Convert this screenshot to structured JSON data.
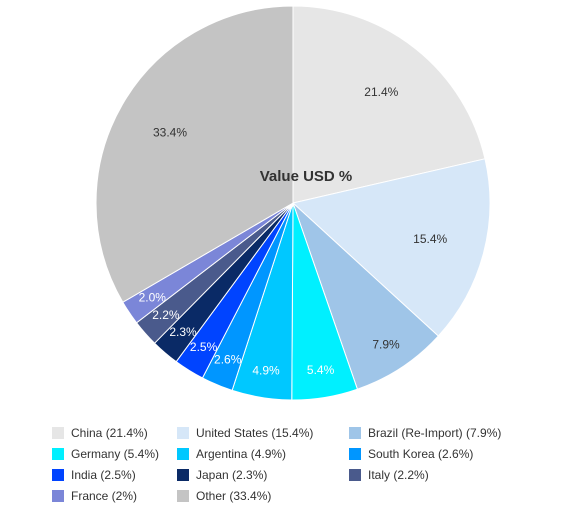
{
  "chart_data": {
    "type": "pie",
    "title": "Value USD %",
    "slices": [
      {
        "label": "China",
        "legend": "China (21.4%)",
        "value": 21.4,
        "display": "21.4%",
        "color": "#e6e6e6",
        "label_color": "#333333"
      },
      {
        "label": "United States",
        "legend": "United States (15.4%)",
        "value": 15.4,
        "display": "15.4%",
        "color": "#d6e7f8",
        "label_color": "#333333"
      },
      {
        "label": "Brazil (Re-Import)",
        "legend": "Brazil (Re-Import) (7.9%)",
        "value": 7.9,
        "display": "7.9%",
        "color": "#9fc5e8",
        "label_color": "#333333"
      },
      {
        "label": "Germany",
        "legend": "Germany (5.4%)",
        "value": 5.4,
        "display": "5.4%",
        "color": "#00f0ff",
        "label_color": "#ffffff"
      },
      {
        "label": "Argentina",
        "legend": "Argentina (4.9%)",
        "value": 4.9,
        "display": "4.9%",
        "color": "#00c8ff",
        "label_color": "#ffffff"
      },
      {
        "label": "South Korea",
        "legend": "South Korea (2.6%)",
        "value": 2.6,
        "display": "2.6%",
        "color": "#0096ff",
        "label_color": "#ffffff"
      },
      {
        "label": "India",
        "legend": "India (2.5%)",
        "value": 2.5,
        "display": "2.5%",
        "color": "#0044ff",
        "label_color": "#ffffff"
      },
      {
        "label": "Japan",
        "legend": "Japan (2.3%)",
        "value": 2.3,
        "display": "2.3%",
        "color": "#0a2a66",
        "label_color": "#ffffff"
      },
      {
        "label": "Italy",
        "legend": "Italy (2.2%)",
        "value": 2.2,
        "display": "2.2%",
        "color": "#4a5a8c",
        "label_color": "#ffffff"
      },
      {
        "label": "France",
        "legend": "France (2%)",
        "value": 2.0,
        "display": "2.0%",
        "color": "#7b86d8",
        "label_color": "#ffffff"
      },
      {
        "label": "Other",
        "legend": "Other (33.4%)",
        "value": 33.4,
        "display": "33.4%",
        "color": "#c4c4c4",
        "label_color": "#333333"
      }
    ],
    "legend_position": "bottom"
  }
}
